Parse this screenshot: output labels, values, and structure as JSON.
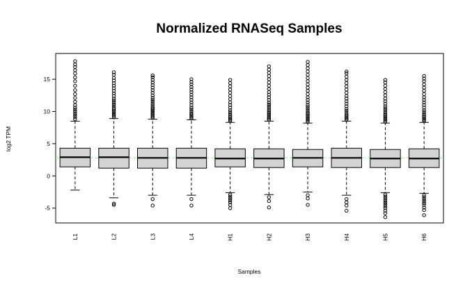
{
  "chart_data": {
    "type": "box",
    "title": "Normalized RNASeq Samples",
    "xlabel": "Samples",
    "ylabel": "log2 TPM",
    "ylim": [
      -7.3,
      19
    ],
    "yticks": [
      -5,
      0,
      5,
      10,
      15
    ],
    "grid": false,
    "colors": {
      "box_fill": "#d3d3d3",
      "median": "#000000",
      "reference_line": "#90ee90"
    },
    "reference_line": {
      "y": 2.8,
      "style": "dashed"
    },
    "categories": [
      "L1",
      "L2",
      "L3",
      "L4",
      "H1",
      "H2",
      "H3",
      "H4",
      "H5",
      "H6"
    ],
    "boxes": [
      {
        "name": "L1",
        "whisker_low": -2.2,
        "q1": 1.4,
        "median": 2.9,
        "q3": 4.3,
        "whisker_high": 8.5,
        "outliers_high": [
          8.8,
          9.1,
          9.4,
          9.7,
          10.0,
          10.3,
          10.6,
          11.0,
          11.5,
          12.1,
          12.7,
          13.3,
          14.0,
          14.7,
          15.3,
          15.9,
          16.4,
          16.9,
          17.3,
          17.8
        ],
        "outliers_low": []
      },
      {
        "name": "L2",
        "whisker_low": -3.4,
        "q1": 1.2,
        "median": 2.9,
        "q3": 4.3,
        "whisker_high": 8.9,
        "outliers_high": [
          9.1,
          9.3,
          9.5,
          9.7,
          9.9,
          10.1,
          10.3,
          10.5,
          10.8,
          11.1,
          11.4,
          11.7,
          12.0,
          12.4,
          12.8,
          13.2,
          13.6,
          14.0,
          14.4,
          14.8,
          15.2,
          15.7,
          16.1
        ],
        "outliers_low": [
          -4.3,
          -4.5
        ]
      },
      {
        "name": "L3",
        "whisker_low": -3.0,
        "q1": 1.2,
        "median": 2.8,
        "q3": 4.3,
        "whisker_high": 8.8,
        "outliers_high": [
          9.0,
          9.2,
          9.4,
          9.6,
          9.8,
          10.0,
          10.2,
          10.4,
          10.6,
          10.9,
          11.2,
          11.5,
          11.8,
          12.1,
          12.5,
          12.9,
          13.3,
          13.7,
          14.1,
          14.5,
          14.9,
          15.3,
          15.6
        ],
        "outliers_low": [
          -3.6,
          -4.6
        ]
      },
      {
        "name": "L4",
        "whisker_low": -3.0,
        "q1": 1.2,
        "median": 2.8,
        "q3": 4.3,
        "whisker_high": 8.7,
        "outliers_high": [
          8.9,
          9.1,
          9.3,
          9.5,
          9.7,
          10.0,
          10.3,
          10.6,
          11.0,
          11.4,
          11.8,
          12.2,
          12.6,
          13.0,
          13.4,
          13.8,
          14.2,
          14.6,
          15.0
        ],
        "outliers_low": [
          -3.6,
          -4.6
        ]
      },
      {
        "name": "H1",
        "whisker_low": -2.6,
        "q1": 1.4,
        "median": 2.7,
        "q3": 4.2,
        "whisker_high": 8.3,
        "outliers_high": [
          8.5,
          8.7,
          8.9,
          9.1,
          9.3,
          9.6,
          9.9,
          10.2,
          10.6,
          11.0,
          11.4,
          11.9,
          12.4,
          12.9,
          13.4,
          13.9,
          14.4,
          14.9
        ],
        "outliers_low": [
          -2.9,
          -3.2,
          -3.5,
          -3.8,
          -4.1,
          -4.5,
          -5.0
        ]
      },
      {
        "name": "H2",
        "whisker_low": -2.9,
        "q1": 1.3,
        "median": 2.7,
        "q3": 4.2,
        "whisker_high": 8.5,
        "outliers_high": [
          8.7,
          8.9,
          9.1,
          9.3,
          9.5,
          9.7,
          9.9,
          10.2,
          10.5,
          10.8,
          11.1,
          11.4,
          11.8,
          12.2,
          12.6,
          13.0,
          13.5,
          14.0,
          14.5,
          15.0,
          15.5,
          16.0,
          16.5,
          17.0
        ],
        "outliers_low": [
          -3.3,
          -3.9,
          -4.9
        ]
      },
      {
        "name": "H3",
        "whisker_low": -2.5,
        "q1": 1.4,
        "median": 2.8,
        "q3": 4.1,
        "whisker_high": 8.2,
        "outliers_high": [
          8.4,
          8.6,
          8.8,
          9.0,
          9.2,
          9.4,
          9.6,
          9.8,
          10.1,
          10.4,
          10.7,
          11.0,
          11.4,
          11.8,
          12.2,
          12.7,
          13.2,
          13.7,
          14.2,
          14.7,
          15.2,
          15.7,
          16.2,
          16.7,
          17.2,
          17.7
        ],
        "outliers_low": [
          -3.0,
          -3.5,
          -4.5
        ]
      },
      {
        "name": "H4",
        "whisker_low": -3.0,
        "q1": 1.3,
        "median": 2.8,
        "q3": 4.3,
        "whisker_high": 8.5,
        "outliers_high": [
          8.7,
          8.9,
          9.1,
          9.3,
          9.5,
          9.8,
          10.1,
          10.4,
          10.8,
          11.2,
          11.6,
          12.0,
          12.4,
          12.9,
          13.4,
          13.9,
          14.4,
          14.9,
          15.4,
          15.9,
          16.2
        ],
        "outliers_low": [
          -3.6,
          -4.1,
          -4.6,
          -5.4
        ]
      },
      {
        "name": "H5",
        "whisker_low": -2.6,
        "q1": 1.3,
        "median": 2.7,
        "q3": 4.1,
        "whisker_high": 8.2,
        "outliers_high": [
          8.4,
          8.6,
          8.8,
          9.0,
          9.2,
          9.4,
          9.6,
          9.9,
          10.2,
          10.5,
          10.8,
          11.2,
          11.6,
          12.0,
          12.5,
          13.0,
          13.5,
          14.0,
          14.5,
          14.9
        ],
        "outliers_low": [
          -2.9,
          -3.2,
          -3.5,
          -3.8,
          -4.1,
          -4.4,
          -4.7,
          -5.0,
          -5.4,
          -5.8,
          -6.4
        ]
      },
      {
        "name": "H6",
        "whisker_low": -2.7,
        "q1": 1.3,
        "median": 2.7,
        "q3": 4.2,
        "whisker_high": 8.3,
        "outliers_high": [
          8.5,
          8.7,
          8.9,
          9.1,
          9.3,
          9.6,
          9.9,
          10.2,
          10.6,
          11.0,
          11.4,
          11.8,
          12.2,
          12.7,
          13.2,
          13.7,
          14.2,
          14.7,
          15.1,
          15.5
        ],
        "outliers_low": [
          -3.0,
          -3.3,
          -3.6,
          -3.9,
          -4.2,
          -4.5,
          -4.9,
          -5.3,
          -6.1
        ]
      }
    ]
  }
}
